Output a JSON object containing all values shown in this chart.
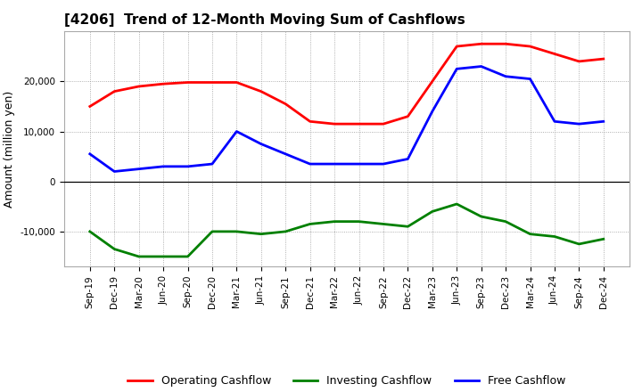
{
  "title": "[4206]  Trend of 12-Month Moving Sum of Cashflows",
  "ylabel": "Amount (million yen)",
  "x_labels": [
    "Sep-19",
    "Dec-19",
    "Mar-20",
    "Jun-20",
    "Sep-20",
    "Dec-20",
    "Mar-21",
    "Jun-21",
    "Sep-21",
    "Dec-21",
    "Mar-22",
    "Jun-22",
    "Sep-22",
    "Dec-22",
    "Mar-23",
    "Jun-23",
    "Sep-23",
    "Dec-23",
    "Mar-24",
    "Jun-24",
    "Sep-24",
    "Dec-24"
  ],
  "operating": [
    15000,
    18000,
    19000,
    19500,
    19800,
    19800,
    19800,
    18000,
    15500,
    12000,
    11500,
    11500,
    11500,
    13000,
    20000,
    27000,
    27500,
    27500,
    27000,
    25500,
    24000,
    24500
  ],
  "investing": [
    -10000,
    -13500,
    -15000,
    -15000,
    -15000,
    -10000,
    -10000,
    -10500,
    -10000,
    -8500,
    -8000,
    -8000,
    -8500,
    -9000,
    -6000,
    -4500,
    -7000,
    -8000,
    -10500,
    -11000,
    -12500,
    -11500
  ],
  "free": [
    5500,
    2000,
    2500,
    3000,
    3000,
    3500,
    10000,
    7500,
    5500,
    3500,
    3500,
    3500,
    3500,
    4500,
    14000,
    22500,
    23000,
    21000,
    20500,
    12000,
    11500,
    12000
  ],
  "operating_color": "#ff0000",
  "investing_color": "#008000",
  "free_color": "#0000ff",
  "ylim": [
    -17000,
    30000
  ],
  "yticks": [
    -10000,
    0,
    10000,
    20000
  ],
  "bg_color": "#ffffff",
  "plot_bg_color": "#ffffff",
  "grid_color": "#999999",
  "linewidth": 2.0,
  "title_fontsize": 11,
  "tick_fontsize": 7.5,
  "ylabel_fontsize": 9
}
